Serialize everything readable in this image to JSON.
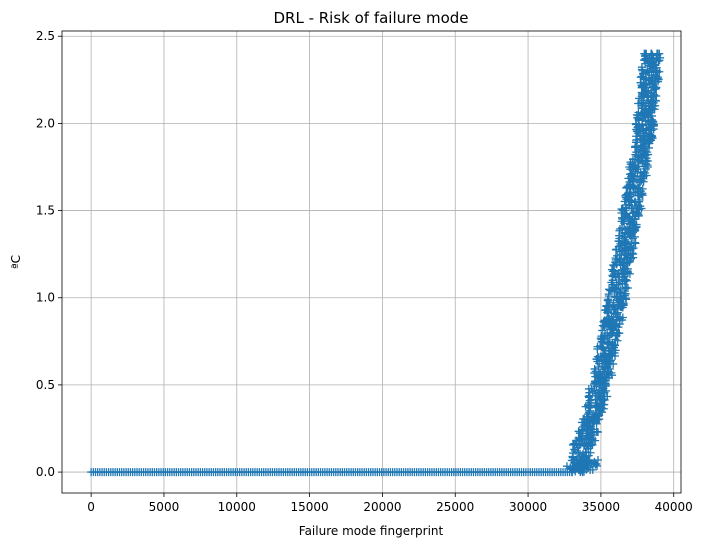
{
  "chart_data": {
    "type": "scatter",
    "title": "DRL - Risk of failure mode",
    "xlabel": "Failure mode fingerprint",
    "ylabel": "ªC",
    "xlim": [
      -2000,
      40500
    ],
    "ylim": [
      -0.12,
      2.53
    ],
    "xticks": [
      0,
      5000,
      10000,
      15000,
      20000,
      25000,
      30000,
      35000,
      40000
    ],
    "yticks": [
      0.0,
      0.5,
      1.0,
      1.5,
      2.0,
      2.5
    ],
    "xtick_labels": [
      "0",
      "5000",
      "10000",
      "15000",
      "20000",
      "25000",
      "30000",
      "35000",
      "40000"
    ],
    "ytick_labels": [
      "0.0",
      "0.5",
      "1.0",
      "1.5",
      "2.0",
      "2.5"
    ],
    "grid": true,
    "marker": "+",
    "color": "#1f77b4",
    "series": [
      {
        "segments": [
          {
            "x": [
              0,
              33000
            ],
            "y": [
              0.0,
              0.0
            ],
            "note_free": true
          },
          {
            "x": [
              33300,
              34800,
              36000,
              37000,
              38000,
              38500
            ],
            "y": [
              0.0,
              0.45,
              0.95,
              1.45,
              1.95,
              2.4
            ]
          }
        ],
        "band_offset": 900
      }
    ]
  }
}
